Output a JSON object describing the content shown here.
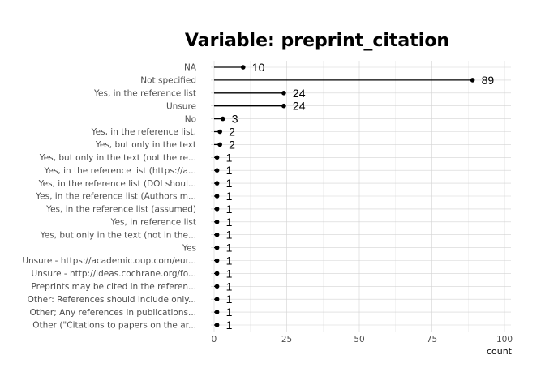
{
  "chart_data": {
    "type": "lollipop",
    "title": "Variable: preprint_citation",
    "xlabel": "count",
    "ylabel": "",
    "xlim": [
      0,
      100
    ],
    "x_ticks": [
      "0",
      "25",
      "50",
      "75",
      "100"
    ],
    "grid": true,
    "categories": [
      "NA",
      "Not specified",
      "Yes, in the reference list",
      "Unsure",
      "No",
      "Yes, in the reference list.",
      "Yes, but only in the text",
      "Yes, but only in the text (not the re...",
      "Yes, in the reference list (https://a...",
      "Yes, in the reference list (DOI shoul...",
      "Yes, in the reference list (Authors m...",
      "Yes, in the reference list (assumed)",
      "Yes, in reference list",
      "Yes, but only in the text (not in the...",
      "Yes",
      "Unsure - https://academic.oup.com/eur...",
      "Unsure - http://ideas.cochrane.org/fo...",
      "Preprints may be cited in the referen...",
      "Other: References should include only...",
      "Other; Any references in publications...",
      "Other (\"Citations to papers on the ar..."
    ],
    "values": [
      10,
      89,
      24,
      24,
      3,
      2,
      2,
      1,
      1,
      1,
      1,
      1,
      1,
      1,
      1,
      1,
      1,
      1,
      1,
      1,
      1
    ],
    "labels": [
      "10",
      "89",
      "24",
      "24",
      "3",
      "2",
      "2",
      "1",
      "1",
      "1",
      "1",
      "1",
      "1",
      "1",
      "1",
      "1",
      "1",
      "1",
      "1",
      "1",
      "1"
    ]
  }
}
